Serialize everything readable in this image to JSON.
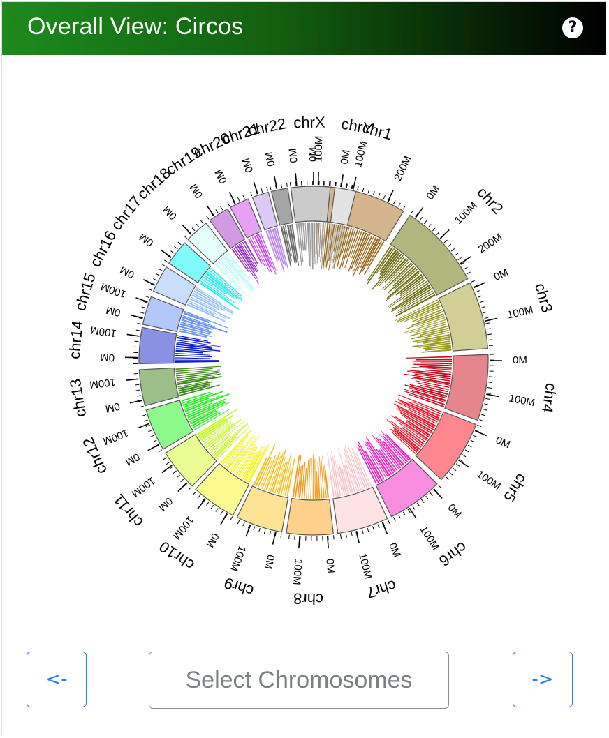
{
  "header": {
    "title": "Overall View: Circos",
    "help_label": "?"
  },
  "controls": {
    "prev_label": "<-",
    "select_label": "Select Chromosomes",
    "next_label": "->"
  },
  "chart_data": {
    "type": "circos",
    "title": "",
    "ticks_unit": "M",
    "chromosomes": [
      {
        "name": "chr1",
        "ticks": [
          "0M",
          "100M",
          "200M"
        ],
        "color": "#d4b48c",
        "link_color": "#9b6a1f"
      },
      {
        "name": "chr2",
        "ticks": [
          "0M",
          "100M",
          "200M"
        ],
        "color": "#b1b57e",
        "link_color": "#6f6e12"
      },
      {
        "name": "chr3",
        "ticks": [
          "0M",
          "100M"
        ],
        "color": "#d1cf96",
        "link_color": "#9a971f"
      },
      {
        "name": "chr4",
        "ticks": [
          "0M",
          "100M"
        ],
        "color": "#e4868c",
        "link_color": "#c70f20"
      },
      {
        "name": "chr5",
        "ticks": [
          "0M",
          "100M"
        ],
        "color": "#fd878e",
        "link_color": "#f51426"
      },
      {
        "name": "chr6",
        "ticks": [
          "0M",
          "100M"
        ],
        "color": "#f98ee0",
        "link_color": "#f326c8"
      },
      {
        "name": "chr7",
        "ticks": [
          "0M",
          "100M"
        ],
        "color": "#fde3e3",
        "link_color": "#fcc7cb"
      },
      {
        "name": "chr8",
        "ticks": [
          "0M",
          "100M"
        ],
        "color": "#fed08c",
        "link_color": "#fb9b20"
      },
      {
        "name": "chr9",
        "ticks": [
          "0M",
          "100M"
        ],
        "color": "#fde393",
        "link_color": "#f7c227"
      },
      {
        "name": "chr10",
        "ticks": [
          "0M",
          "100M"
        ],
        "color": "#fcfb8f",
        "link_color": "#f7f523"
      },
      {
        "name": "chr11",
        "ticks": [
          "0M",
          "100M"
        ],
        "color": "#eafd93",
        "link_color": "#c8f92b"
      },
      {
        "name": "chr12",
        "ticks": [
          "0M",
          "100M"
        ],
        "color": "#8cfb8c",
        "link_color": "#2ff02a"
      },
      {
        "name": "chr13",
        "ticks": [
          "0M",
          "100M"
        ],
        "color": "#9bbf88",
        "link_color": "#3f8a1c"
      },
      {
        "name": "chr14",
        "ticks": [
          "0M",
          "100M"
        ],
        "color": "#8891e3",
        "link_color": "#0d1ed0"
      },
      {
        "name": "chr15",
        "ticks": [
          "0M",
          "100M"
        ],
        "color": "#b2c8fb",
        "link_color": "#6a93f6"
      },
      {
        "name": "chr16",
        "ticks": [
          "0M"
        ],
        "color": "#c9defc",
        "link_color": "#98c2fa"
      },
      {
        "name": "chr17",
        "ticks": [
          "0M"
        ],
        "color": "#80fbfb",
        "link_color": "#10f3f3"
      },
      {
        "name": "chr18",
        "ticks": [
          "0M"
        ],
        "color": "#e4fdfd",
        "link_color": "#c7f9f9"
      },
      {
        "name": "chr19",
        "ticks": [
          "0M"
        ],
        "color": "#d39ae4",
        "link_color": "#9b2ccc"
      },
      {
        "name": "chr20",
        "ticks": [
          "0M"
        ],
        "color": "#e89ff6",
        "link_color": "#c849ec"
      },
      {
        "name": "chr21",
        "ticks": [
          "0M"
        ],
        "color": "#dcc9f6",
        "link_color": "#bd8ef0"
      },
      {
        "name": "chr22",
        "ticks": [
          "0M"
        ],
        "color": "#a5a5a5",
        "link_color": "#6b6b6b"
      },
      {
        "name": "chrX",
        "ticks": [
          "0M",
          "100M"
        ],
        "color": "#cbcbcb",
        "link_color": "#9a9a9a"
      },
      {
        "name": "chrY",
        "ticks": [
          "0M"
        ],
        "color": "#e2e2e2",
        "link_color": "#c8c8c8"
      }
    ]
  }
}
